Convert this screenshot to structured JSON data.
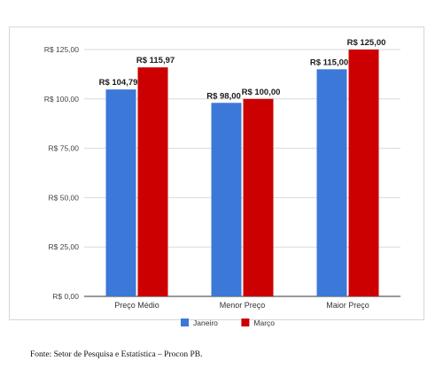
{
  "chart_data": {
    "type": "bar",
    "title": "",
    "xlabel": "",
    "ylabel": "",
    "categories": [
      "Preço Médio",
      "Menor Preço",
      "Maior Preço"
    ],
    "series": [
      {
        "name": "Janeiro",
        "color": "#3c78d8",
        "values": [
          104.79,
          98.0,
          115.0
        ],
        "labels": [
          "R$ 104,79",
          "R$ 98,00",
          "R$ 115,00"
        ]
      },
      {
        "name": "Março",
        "color": "#cc0000",
        "values": [
          115.97,
          100.0,
          125.0
        ],
        "labels": [
          "R$ 115,97",
          "R$ 100,00",
          "R$ 125,00"
        ]
      }
    ],
    "ylim": [
      0,
      125
    ],
    "yticks": [
      0,
      25,
      50,
      75,
      100,
      125
    ],
    "ytick_labels": [
      "R$ 0,00",
      "R$ 25,00",
      "R$ 50,00",
      "R$ 75,00",
      "R$ 100,00",
      "R$ 125,00"
    ],
    "grid": true,
    "legend_position": "bottom"
  },
  "source_note": "Fonte: Setor de Pesquisa e Estatística – Procon PB."
}
